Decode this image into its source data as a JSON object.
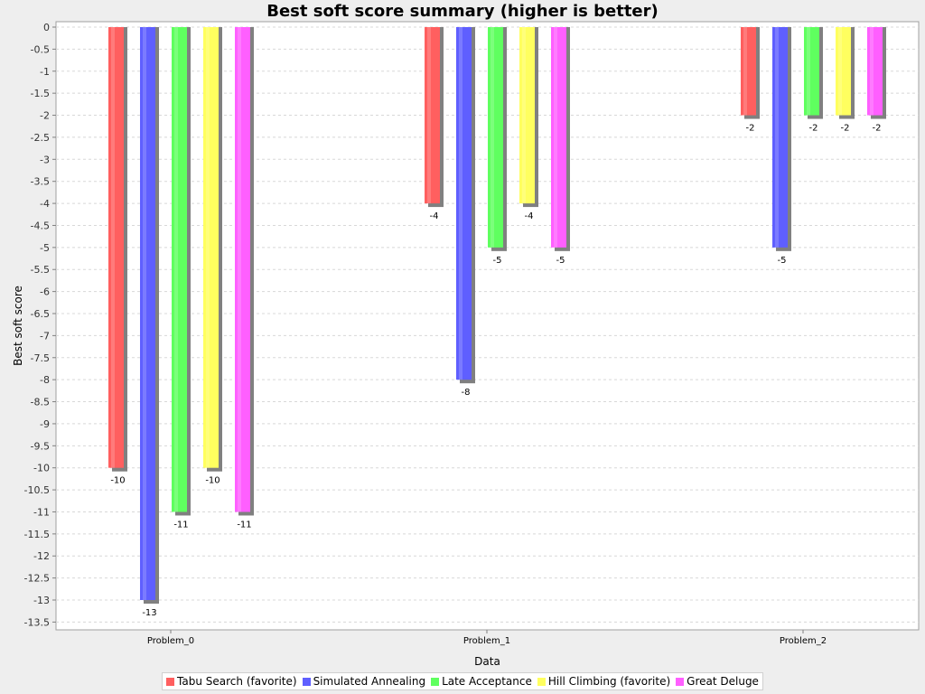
{
  "chart_data": {
    "type": "bar",
    "title": "Best soft score summary (higher is better)",
    "xlabel": "Data",
    "ylabel": "Best soft score",
    "categories": [
      "Problem_0",
      "Problem_1",
      "Problem_2"
    ],
    "ylim": [
      -13.6,
      0
    ],
    "ytick_step": 0.5,
    "grid": true,
    "legend_position": "bottom",
    "series": [
      {
        "name": "Tabu Search (favorite)",
        "color": "#ff5f5f",
        "values": [
          -10,
          -4,
          -2
        ]
      },
      {
        "name": "Simulated Annealing",
        "color": "#5f5fff",
        "values": [
          -13,
          -8,
          -5
        ]
      },
      {
        "name": "Late Acceptance",
        "color": "#5fff5f",
        "values": [
          -11,
          -5,
          -2
        ]
      },
      {
        "name": "Hill Climbing (favorite)",
        "color": "#ffff5f",
        "values": [
          -10,
          -4,
          -2
        ]
      },
      {
        "name": "Great Deluge",
        "color": "#ff5fff",
        "values": [
          -11,
          -5,
          -2
        ]
      }
    ]
  }
}
